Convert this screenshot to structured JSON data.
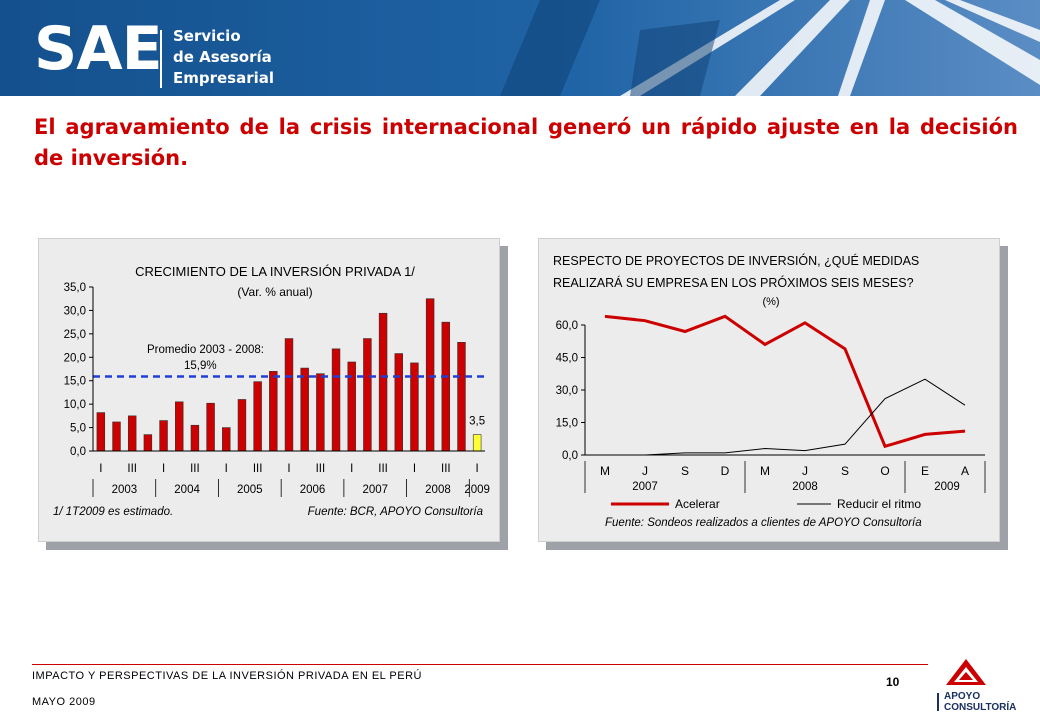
{
  "header": {
    "logo_short": "SAE",
    "logo_line1": "Servicio",
    "logo_line2": "de Asesoría",
    "logo_line3": "Empresarial"
  },
  "slide_title": "El agravamiento de la crisis internacional generó un rápido ajuste en la decisión de inversión.",
  "colors": {
    "title_red": "#cc0000",
    "bar_red": "#cc0000",
    "bar_highlight": "#ffff33",
    "avg_line": "#1f3fd8",
    "header_blue": "#1d5fa0"
  },
  "chart_data": [
    {
      "type": "bar",
      "title": "CRECIMIENTO DE LA INVERSIÓN PRIVADA 1/",
      "subtitle": "(Var. % anual)",
      "yticks": [
        "35,0",
        "30,0",
        "25,0",
        "20,0",
        "15,0",
        "10,0",
        "5,0",
        "0,0"
      ],
      "ylim": [
        0,
        35
      ],
      "quarter_labels": [
        "I",
        "III",
        "I",
        "III",
        "I",
        "III",
        "I",
        "III",
        "I",
        "III",
        "I",
        "III",
        "I"
      ],
      "year_labels": [
        "2003",
        "2004",
        "2005",
        "2006",
        "2007",
        "2008",
        "2009"
      ],
      "values": [
        8.2,
        6.2,
        7.5,
        3.5,
        6.5,
        10.5,
        5.5,
        10.2,
        5.0,
        11.0,
        14.8,
        17.0,
        24.0,
        17.7,
        16.5,
        21.8,
        19.0,
        24.0,
        29.4,
        20.8,
        18.8,
        32.5,
        27.5,
        23.2,
        3.5
      ],
      "highlight_last": true,
      "last_label": "3,5",
      "average": {
        "value": 15.9,
        "label_line1": "Promedio 2003 - 2008:",
        "label_line2": "15,9%"
      },
      "note": "1/ 1T2009 es estimado.",
      "source": "Fuente: BCR, APOYO Consultoría"
    },
    {
      "type": "line",
      "title_line1": "RESPECTO DE PROYECTOS DE INVERSIÓN, ¿QUÉ MEDIDAS",
      "title_line2": "REALIZARÁ SU EMPRESA EN LOS PRÓXIMOS SEIS MESES?",
      "unit": "(%)",
      "ylim": [
        0,
        60
      ],
      "yticks": [
        "60,0",
        "45,0",
        "30,0",
        "15,0",
        "0,0"
      ],
      "x": [
        "M",
        "J",
        "S",
        "D",
        "M",
        "J",
        "S",
        "O",
        "E",
        "A"
      ],
      "year_labels": [
        "2007",
        "2008",
        "2009"
      ],
      "series": [
        {
          "name": "Acelerar",
          "color": "#cc0000",
          "values": [
            64,
            62,
            57,
            64,
            51,
            61,
            49,
            4,
            9.5,
            11
          ]
        },
        {
          "name": "Reducir el ritmo",
          "color": "#000000",
          "values": [
            0,
            0,
            1,
            1,
            3,
            2,
            5,
            26,
            35,
            23
          ]
        }
      ],
      "source": "Fuente: Sondeos realizados a clientes de APOYO Consultoría"
    }
  ],
  "footer": {
    "doc_title": "IMPACTO Y PERSPECTIVAS DE LA INVERSIÓN PRIVADA EN EL PERÚ",
    "date": "MAYO 2009",
    "page": "10",
    "brand_line1": "APOYO",
    "brand_line2": "CONSULTORÍA"
  }
}
